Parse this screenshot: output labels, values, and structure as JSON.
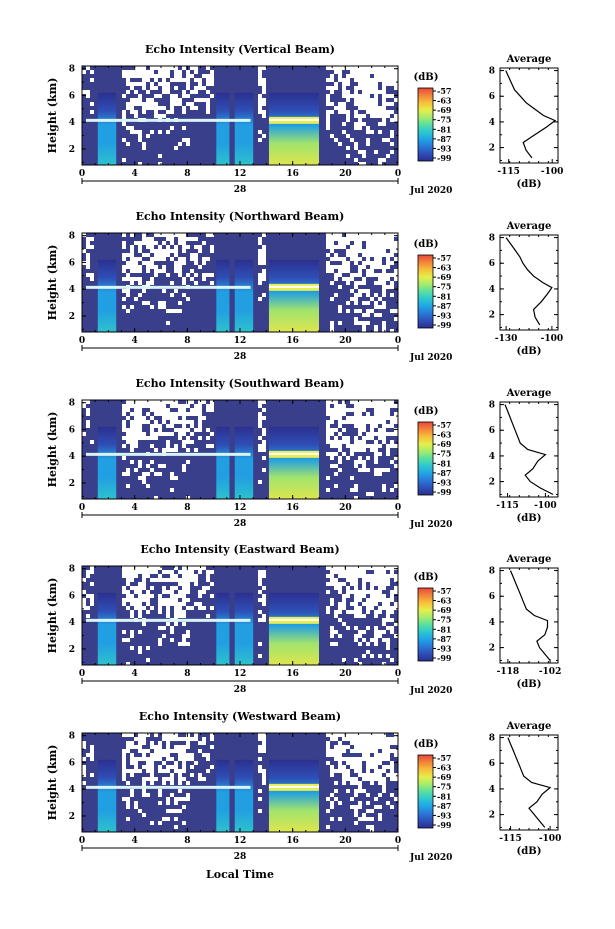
{
  "figure": {
    "date_label": "Jul 2020",
    "date_day": "28",
    "x_axis_label": "Local Time",
    "y_axis_label": "Height (km)",
    "colorbar_unit": "(dB)",
    "average_title": "Average",
    "average_xlabel": "(dB)"
  },
  "chart_data": [
    {
      "type": "heatmap",
      "title": "Echo Intensity (Vertical Beam)",
      "x_ticks": [
        "0",
        "4",
        "8",
        "12",
        "16",
        "20",
        "0"
      ],
      "xlim": [
        0,
        24
      ],
      "y_ticks": [
        "2",
        "4",
        "6",
        "8"
      ],
      "ylim": [
        0.8,
        8.2
      ],
      "colorbar_ticks": [
        "-57",
        "-63",
        "-69",
        "-75",
        "-81",
        "-87",
        "-93",
        "-99"
      ],
      "layer_height_km": 4.1,
      "precip_bands_hours": [
        [
          1.2,
          2.6
        ],
        [
          10.2,
          11.2
        ],
        [
          11.6,
          13.0
        ],
        [
          14.2,
          18.0
        ]
      ],
      "average_profile": {
        "x_ticks": [
          "-115",
          "-100"
        ],
        "xlim": [
          -118,
          -98
        ],
        "y_ticks": [
          "2",
          "4",
          "6",
          "8"
        ],
        "height": [
          1.2,
          1.8,
          2.4,
          3.0,
          3.6,
          4.1,
          4.5,
          5.0,
          5.5,
          6.0,
          6.5,
          7.0,
          7.5,
          8.0
        ],
        "db": [
          -107,
          -109,
          -110,
          -106,
          -102,
          -99,
          -103,
          -106,
          -109,
          -111,
          -113,
          -114,
          -115,
          -116
        ]
      }
    },
    {
      "type": "heatmap",
      "title": "Echo Intensity (Northward Beam)",
      "x_ticks": [
        "0",
        "4",
        "8",
        "12",
        "16",
        "20",
        "0"
      ],
      "xlim": [
        0,
        24
      ],
      "y_ticks": [
        "2",
        "4",
        "6",
        "8"
      ],
      "ylim": [
        0.8,
        8.2
      ],
      "colorbar_ticks": [
        "-57",
        "-63",
        "-69",
        "-75",
        "-81",
        "-87",
        "-93",
        "-99"
      ],
      "layer_height_km": 4.1,
      "precip_bands_hours": [
        [
          1.2,
          2.6
        ],
        [
          10.2,
          11.2
        ],
        [
          11.6,
          13.0
        ],
        [
          14.2,
          18.0
        ]
      ],
      "average_profile": {
        "x_ticks": [
          "-130",
          "-100"
        ],
        "xlim": [
          -134,
          -96
        ],
        "y_ticks": [
          "2",
          "4",
          "6",
          "8"
        ],
        "height": [
          1.2,
          1.8,
          2.4,
          3.0,
          3.6,
          4.1,
          4.5,
          5.0,
          5.5,
          6.0,
          6.5,
          7.0,
          7.5,
          8.0
        ],
        "db": [
          -108,
          -111,
          -112,
          -107,
          -103,
          -100,
          -106,
          -112,
          -116,
          -119,
          -121,
          -124,
          -127,
          -130
        ]
      }
    },
    {
      "type": "heatmap",
      "title": "Echo Intensity (Southward Beam)",
      "x_ticks": [
        "0",
        "4",
        "8",
        "12",
        "16",
        "20",
        "0"
      ],
      "xlim": [
        0,
        24
      ],
      "y_ticks": [
        "2",
        "4",
        "6",
        "8"
      ],
      "ylim": [
        0.8,
        8.2
      ],
      "colorbar_ticks": [
        "-57",
        "-63",
        "-69",
        "-75",
        "-81",
        "-87",
        "-93",
        "-99"
      ],
      "layer_height_km": 4.1,
      "precip_bands_hours": [
        [
          1.2,
          2.6
        ],
        [
          10.2,
          11.2
        ],
        [
          11.6,
          13.0
        ],
        [
          14.2,
          18.0
        ]
      ],
      "average_profile": {
        "x_ticks": [
          "-115",
          "-100"
        ],
        "xlim": [
          -118,
          -95
        ],
        "y_ticks": [
          "2",
          "4",
          "6",
          "8"
        ],
        "height": [
          1.0,
          1.5,
          2.0,
          2.5,
          3.0,
          3.6,
          4.1,
          4.5,
          5.0,
          5.5,
          6.0,
          6.5,
          7.0,
          7.5,
          8.0
        ],
        "db": [
          -97,
          -102,
          -106,
          -108,
          -105,
          -103,
          -100,
          -107,
          -110,
          -111,
          -112,
          -113,
          -114,
          -115,
          -116
        ]
      }
    },
    {
      "type": "heatmap",
      "title": "Echo Intensity (Eastward Beam)",
      "x_ticks": [
        "0",
        "4",
        "8",
        "12",
        "16",
        "20",
        "0"
      ],
      "xlim": [
        0,
        24
      ],
      "y_ticks": [
        "2",
        "4",
        "6",
        "8"
      ],
      "ylim": [
        0.8,
        8.2
      ],
      "colorbar_ticks": [
        "-57",
        "-63",
        "-69",
        "-75",
        "-81",
        "-87",
        "-93",
        "-99"
      ],
      "layer_height_km": 4.1,
      "precip_bands_hours": [
        [
          1.2,
          2.6
        ],
        [
          10.2,
          11.2
        ],
        [
          11.6,
          13.0
        ],
        [
          14.2,
          18.0
        ]
      ],
      "average_profile": {
        "x_ticks": [
          "-118",
          "-102"
        ],
        "xlim": [
          -121,
          -99
        ],
        "y_ticks": [
          "2",
          "4",
          "6",
          "8"
        ],
        "height": [
          1.0,
          1.5,
          2.0,
          2.5,
          3.0,
          3.6,
          4.1,
          4.5,
          5.0,
          5.5,
          6.0,
          6.5,
          7.0,
          7.5,
          8.0
        ],
        "db": [
          -102,
          -104,
          -106,
          -107,
          -104,
          -103,
          -103,
          -108,
          -111,
          -112,
          -113,
          -114,
          -115,
          -116,
          -117
        ]
      }
    },
    {
      "type": "heatmap",
      "title": "Echo Intensity (Westward Beam)",
      "x_ticks": [
        "0",
        "4",
        "8",
        "12",
        "16",
        "20",
        "0"
      ],
      "xlim": [
        0,
        24
      ],
      "y_ticks": [
        "2",
        "4",
        "6",
        "8"
      ],
      "ylim": [
        0.8,
        8.2
      ],
      "colorbar_ticks": [
        "-57",
        "-63",
        "-69",
        "-75",
        "-81",
        "-87",
        "-93",
        "-99"
      ],
      "layer_height_km": 4.1,
      "precip_bands_hours": [
        [
          1.2,
          2.6
        ],
        [
          10.2,
          11.2
        ],
        [
          11.6,
          13.0
        ],
        [
          14.2,
          18.0
        ]
      ],
      "average_profile": {
        "x_ticks": [
          "-115",
          "-100"
        ],
        "xlim": [
          -119,
          -97
        ],
        "y_ticks": [
          "2",
          "4",
          "6",
          "8"
        ],
        "height": [
          1.0,
          1.5,
          2.0,
          2.5,
          3.0,
          3.6,
          4.1,
          4.5,
          5.0,
          5.5,
          6.0,
          6.5,
          7.0,
          7.5,
          8.0
        ],
        "db": [
          -102,
          -104,
          -106,
          -108,
          -105,
          -103,
          -100,
          -107,
          -110,
          -111,
          -112,
          -113,
          -114,
          -115,
          -116
        ]
      }
    }
  ]
}
